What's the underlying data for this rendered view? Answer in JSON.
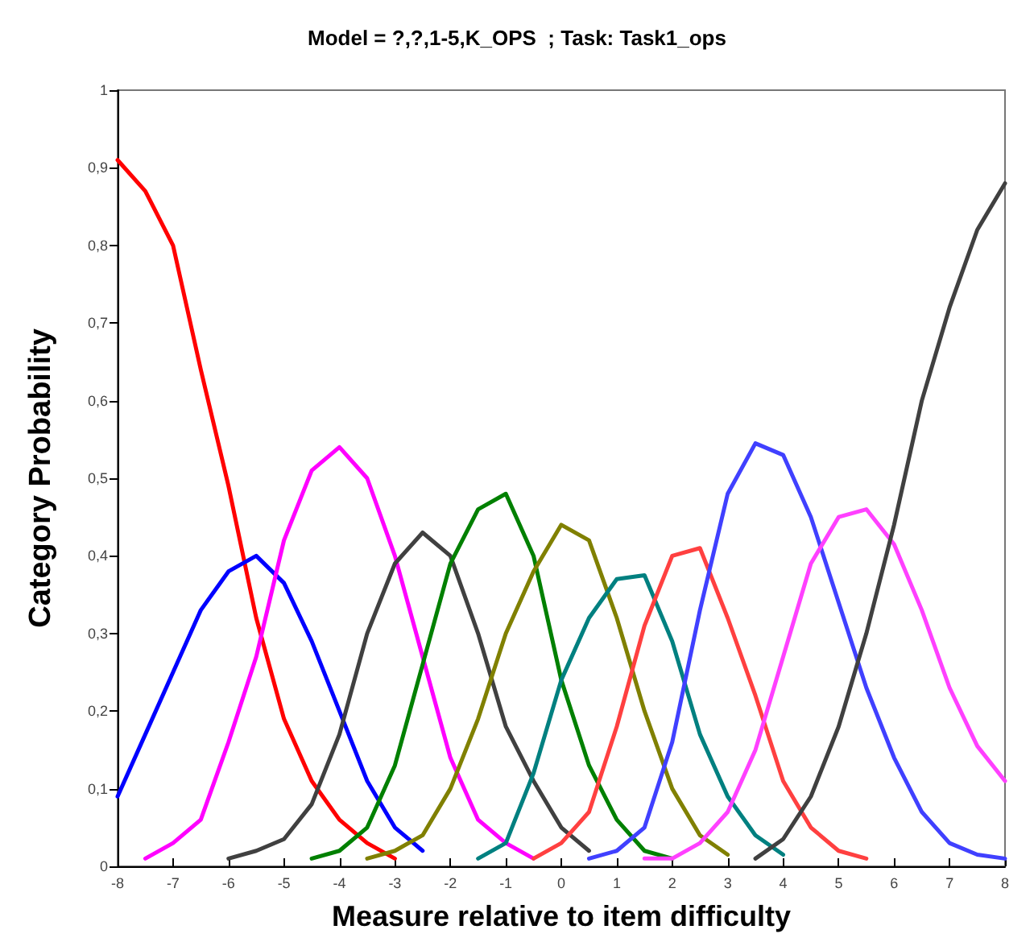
{
  "chart_data": {
    "type": "line",
    "title": "Model = ?,?,1-5,K_OPS  ; Task: Task1_ops",
    "xlabel": "Measure relative to item difficulty",
    "ylabel": "Category Probability",
    "x": [
      -8,
      -7.5,
      -7,
      -6.5,
      -6,
      -5.5,
      -5,
      -4.5,
      -4,
      -3.5,
      -3,
      -2.5,
      -2,
      -1.5,
      -1,
      -0.5,
      0,
      0.5,
      1,
      1.5,
      2,
      2.5,
      3,
      3.5,
      4,
      4.5,
      5,
      5.5,
      6,
      6.5,
      7,
      7.5,
      8
    ],
    "xlim": [
      -8,
      8
    ],
    "xticks": [
      -8,
      -7,
      -6,
      -5,
      -4,
      -3,
      -2,
      -1,
      0,
      1,
      2,
      3,
      4,
      5,
      6,
      7,
      8
    ],
    "ylim": [
      0,
      1
    ],
    "yticks": [
      0,
      {
        "value": 0.1,
        "label": "0,1"
      },
      {
        "value": 0.2,
        "label": "0,2"
      },
      {
        "value": 0.3,
        "label": "0,3"
      },
      {
        "value": 0.4,
        "label": "0,4"
      },
      {
        "value": 0.5,
        "label": "0,5"
      },
      {
        "value": 0.6,
        "label": "0,6"
      },
      {
        "value": 0.7,
        "label": "0,7"
      },
      {
        "value": 0.8,
        "label": "0,8"
      },
      {
        "value": 0.9,
        "label": "0,9"
      },
      1
    ],
    "grid": false,
    "marker": "none",
    "line_style": "solid",
    "series": [
      {
        "color": "#ff0000",
        "values": [
          0.91,
          0.87,
          0.8,
          0.64,
          0.49,
          0.32,
          0.19,
          0.11,
          0.06,
          0.03,
          0.01,
          null,
          null,
          null,
          null,
          null,
          null,
          null,
          null,
          null,
          null,
          null,
          null,
          null,
          null,
          null,
          null,
          null,
          null,
          null,
          null,
          null,
          null
        ]
      },
      {
        "color": "#0000ff",
        "values": [
          0.09,
          0.17,
          0.25,
          0.33,
          0.38,
          0.4,
          0.365,
          0.29,
          0.2,
          0.11,
          0.05,
          0.02,
          null,
          null,
          null,
          null,
          null,
          null,
          null,
          null,
          null,
          null,
          null,
          null,
          null,
          null,
          null,
          null,
          null,
          null,
          null,
          null,
          null
        ]
      },
      {
        "color": "#ff00ff",
        "values": [
          null,
          0.01,
          0.03,
          0.06,
          0.16,
          0.27,
          0.42,
          0.51,
          0.54,
          0.5,
          0.4,
          0.27,
          0.14,
          0.06,
          0.03,
          0.01,
          null,
          null,
          null,
          null,
          null,
          null,
          null,
          null,
          null,
          null,
          null,
          null,
          null,
          null,
          null,
          null,
          null
        ]
      },
      {
        "color": "#404040",
        "values": [
          null,
          null,
          null,
          null,
          0.01,
          0.02,
          0.035,
          0.08,
          0.17,
          0.3,
          0.39,
          0.43,
          0.4,
          0.3,
          0.18,
          0.11,
          0.05,
          0.02,
          null,
          null,
          null,
          null,
          null,
          null,
          null,
          null,
          null,
          null,
          null,
          null,
          null,
          null,
          null
        ]
      },
      {
        "color": "#008000",
        "values": [
          null,
          null,
          null,
          null,
          null,
          null,
          null,
          0.01,
          0.02,
          0.05,
          0.13,
          0.26,
          0.39,
          0.46,
          0.48,
          0.4,
          0.24,
          0.13,
          0.06,
          0.02,
          0.01,
          null,
          null,
          null,
          null,
          null,
          null,
          null,
          null,
          null,
          null,
          null,
          null
        ]
      },
      {
        "color": "#808000",
        "values": [
          null,
          null,
          null,
          null,
          null,
          null,
          null,
          null,
          null,
          0.01,
          0.02,
          0.04,
          0.1,
          0.19,
          0.3,
          0.38,
          0.44,
          0.42,
          0.32,
          0.2,
          0.1,
          0.04,
          0.015,
          null,
          null,
          null,
          null,
          null,
          null,
          null,
          null,
          null,
          null
        ]
      },
      {
        "color": "#008080",
        "values": [
          null,
          null,
          null,
          null,
          null,
          null,
          null,
          null,
          null,
          null,
          null,
          null,
          null,
          0.01,
          0.03,
          0.12,
          0.24,
          0.32,
          0.37,
          0.375,
          0.29,
          0.17,
          0.09,
          0.04,
          0.015,
          null,
          null,
          null,
          null,
          null,
          null,
          null,
          null
        ]
      },
      {
        "color": "#ff4040",
        "values": [
          null,
          null,
          null,
          null,
          null,
          null,
          null,
          null,
          null,
          null,
          null,
          null,
          null,
          null,
          null,
          0.01,
          0.03,
          0.07,
          0.18,
          0.31,
          0.4,
          0.41,
          0.32,
          0.22,
          0.11,
          0.05,
          0.02,
          0.01,
          null,
          null,
          null,
          null,
          null
        ]
      },
      {
        "color": "#4040ff",
        "values": [
          null,
          null,
          null,
          null,
          null,
          null,
          null,
          null,
          null,
          null,
          null,
          null,
          null,
          null,
          null,
          null,
          null,
          0.01,
          0.02,
          0.05,
          0.16,
          0.33,
          0.48,
          0.545,
          0.53,
          0.45,
          0.34,
          0.23,
          0.14,
          0.07,
          0.03,
          0.015,
          0.01
        ]
      },
      {
        "color": "#ff40ff",
        "values": [
          null,
          null,
          null,
          null,
          null,
          null,
          null,
          null,
          null,
          null,
          null,
          null,
          null,
          null,
          null,
          null,
          null,
          null,
          null,
          0.01,
          0.01,
          0.03,
          0.07,
          0.15,
          0.27,
          0.39,
          0.45,
          0.46,
          0.415,
          0.33,
          0.23,
          0.155,
          0.11
        ]
      },
      {
        "color": "#404040",
        "values": [
          null,
          null,
          null,
          null,
          null,
          null,
          null,
          null,
          null,
          null,
          null,
          null,
          null,
          null,
          null,
          null,
          null,
          null,
          null,
          null,
          null,
          null,
          null,
          0.01,
          0.035,
          0.09,
          0.18,
          0.3,
          0.44,
          0.6,
          0.72,
          0.82,
          0.88
        ]
      }
    ]
  }
}
